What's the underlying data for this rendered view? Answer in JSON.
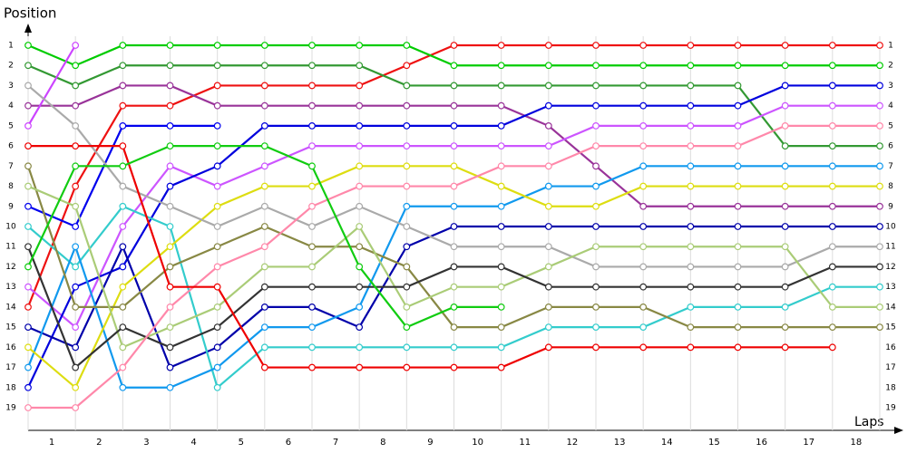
{
  "chart_data": {
    "type": "line",
    "x_title": "Laps",
    "y_title": "Position",
    "x": [
      0,
      1,
      2,
      3,
      4,
      5,
      6,
      7,
      8,
      9,
      10,
      11,
      12,
      13,
      14,
      15,
      16,
      17,
      18
    ],
    "xlim": [
      0,
      18
    ],
    "lap_labels": [
      "1",
      "2",
      "3",
      "4",
      "5",
      "6",
      "7",
      "8",
      "9",
      "10",
      "11",
      "12",
      "13",
      "14",
      "15",
      "16",
      "17",
      "18"
    ],
    "ylim": [
      1,
      19
    ],
    "invert_y": true,
    "yticks": [
      1,
      2,
      3,
      4,
      5,
      6,
      7,
      8,
      9,
      10,
      11,
      12,
      13,
      14,
      15,
      16,
      17,
      18,
      19
    ],
    "grid": true,
    "series": [
      {
        "color": "#ee1111",
        "values": [
          14,
          8,
          4,
          4,
          3,
          3,
          3,
          3,
          2,
          1,
          1,
          1,
          1,
          1,
          1,
          1,
          1,
          1,
          1
        ]
      },
      {
        "color": "#00cc00",
        "values": [
          1,
          2,
          1,
          1,
          1,
          1,
          1,
          1,
          1,
          2,
          2,
          2,
          2,
          2,
          2,
          2,
          2,
          2,
          2
        ]
      },
      {
        "color": "#339933",
        "values": [
          2,
          3,
          2,
          2,
          2,
          2,
          2,
          2,
          3,
          3,
          3,
          3,
          3,
          3,
          3,
          3,
          6,
          6,
          6
        ]
      },
      {
        "color": "#993399",
        "values": [
          4,
          4,
          3,
          3,
          4,
          4,
          4,
          4,
          4,
          4,
          4,
          5,
          7,
          9,
          9,
          9,
          9,
          9,
          9
        ]
      },
      {
        "color": "#cc44ff",
        "values": [
          5,
          1,
          null,
          null,
          null,
          null,
          null,
          null,
          null,
          null,
          null,
          null,
          null,
          null,
          null,
          null,
          null,
          null,
          null
        ]
      },
      {
        "color": "#cc55ff",
        "values": [
          13,
          15,
          10,
          7,
          8,
          7,
          6,
          6,
          6,
          6,
          6,
          6,
          5,
          5,
          5,
          5,
          4,
          4,
          4
        ]
      },
      {
        "color": "#0000ee",
        "values": [
          9,
          10,
          5,
          5,
          5,
          null,
          null,
          null,
          null,
          null,
          null,
          null,
          null,
          null,
          null,
          null,
          null,
          null,
          null
        ]
      },
      {
        "color": "#0000dd",
        "values": [
          18,
          13,
          12,
          8,
          7,
          5,
          5,
          5,
          5,
          5,
          5,
          4,
          4,
          4,
          4,
          4,
          3,
          3,
          3
        ]
      },
      {
        "color": "#0000aa",
        "values": [
          15,
          16,
          11,
          17,
          16,
          14,
          14,
          15,
          11,
          10,
          10,
          10,
          10,
          10,
          10,
          10,
          10,
          10,
          10
        ]
      },
      {
        "color": "#33cccc",
        "values": [
          10,
          12,
          9,
          10,
          18,
          16,
          16,
          16,
          16,
          16,
          16,
          15,
          15,
          15,
          14,
          14,
          14,
          13,
          13
        ]
      },
      {
        "color": "#1199ee",
        "values": [
          17,
          11,
          18,
          18,
          17,
          15,
          15,
          14,
          9,
          9,
          9,
          8,
          8,
          7,
          7,
          7,
          7,
          7,
          7
        ]
      },
      {
        "color": "#dddd11",
        "values": [
          16,
          18,
          13,
          11,
          9,
          8,
          8,
          7,
          7,
          7,
          8,
          9,
          9,
          8,
          8,
          8,
          8,
          8,
          8
        ]
      },
      {
        "color": "#aaaaaa",
        "values": [
          3,
          5,
          8,
          9,
          10,
          9,
          10,
          9,
          10,
          11,
          11,
          11,
          12,
          12,
          12,
          12,
          12,
          11,
          11
        ]
      },
      {
        "color": "#888844",
        "values": [
          7,
          14,
          14,
          12,
          11,
          10,
          11,
          11,
          12,
          15,
          15,
          14,
          14,
          14,
          15,
          15,
          15,
          15,
          15
        ]
      },
      {
        "color": "#aacc77",
        "values": [
          8,
          9,
          16,
          15,
          14,
          12,
          12,
          10,
          14,
          13,
          13,
          12,
          11,
          11,
          11,
          11,
          11,
          14,
          14
        ]
      },
      {
        "color": "#333333",
        "values": [
          11,
          17,
          15,
          16,
          15,
          13,
          13,
          13,
          13,
          12,
          12,
          13,
          13,
          13,
          13,
          13,
          13,
          12,
          12
        ]
      },
      {
        "color": "#ff88aa",
        "values": [
          19,
          19,
          17,
          14,
          12,
          11,
          9,
          8,
          8,
          8,
          7,
          7,
          6,
          6,
          6,
          6,
          5,
          5,
          5
        ]
      },
      {
        "color": "#ee0000",
        "values": [
          6,
          6,
          6,
          13,
          13,
          17,
          17,
          17,
          17,
          17,
          17,
          16,
          16,
          16,
          16,
          16,
          16,
          16,
          null
        ]
      },
      {
        "color": "#11cc11",
        "values": [
          12,
          7,
          7,
          6,
          6,
          6,
          7,
          12,
          15,
          14,
          14,
          null,
          null,
          null,
          null,
          null,
          null,
          null,
          null
        ]
      }
    ]
  }
}
